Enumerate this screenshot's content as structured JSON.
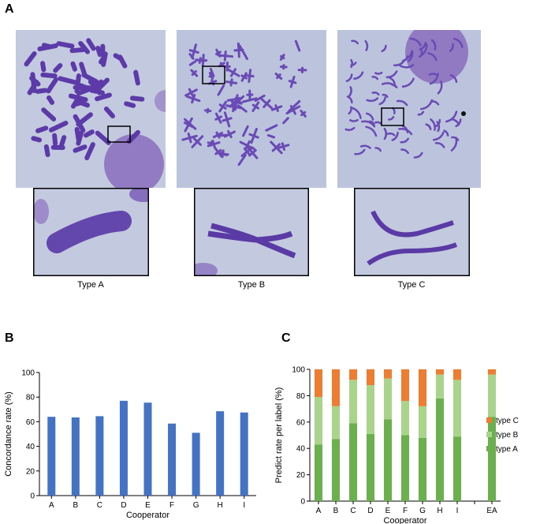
{
  "panel_a": {
    "letter": "A",
    "captions": [
      "Type A",
      "Type B",
      "Type C"
    ],
    "colors": {
      "slide": "#bcc4dd",
      "chromosome": "#5c3aa8",
      "nucleus": "#8d72bf",
      "frame": "#000000"
    }
  },
  "chart_data": [
    {
      "panel": "B",
      "type": "bar",
      "title": "",
      "xlabel": "Cooperator",
      "ylabel": "Concordance rate (%)",
      "ylim": [
        0,
        100
      ],
      "yticks": [
        0,
        20,
        40,
        60,
        80,
        100
      ],
      "categories": [
        "A",
        "B",
        "C",
        "D",
        "E",
        "F",
        "G",
        "H",
        "I"
      ],
      "values": [
        64,
        63.5,
        64.5,
        77,
        75.5,
        58.5,
        51,
        68.5,
        67.5
      ],
      "color": "#4472c4",
      "grid": false
    },
    {
      "panel": "C",
      "type": "bar",
      "stacked": true,
      "title": "",
      "xlabel": "Cooperator",
      "ylabel": "Predict rate per label (%)",
      "ylim": [
        0,
        100
      ],
      "yticks": [
        0,
        20,
        40,
        60,
        80,
        100
      ],
      "categories": [
        "A",
        "B",
        "C",
        "D",
        "E",
        "F",
        "G",
        "H",
        "I",
        "",
        "EA"
      ],
      "legend_position": "right",
      "grid": false,
      "series": [
        {
          "name": "type A",
          "color": "#6ab04c",
          "values": [
            43,
            47,
            59,
            51,
            62,
            50,
            48,
            78,
            49,
            null,
            64
          ]
        },
        {
          "name": "type B",
          "color": "#a8d58a",
          "values": [
            36,
            25,
            33,
            37,
            31,
            26,
            24,
            18,
            43,
            null,
            32
          ]
        },
        {
          "name": "type C",
          "color": "#ef7d31",
          "values": [
            21,
            28,
            8,
            12,
            7,
            24,
            28,
            4,
            8,
            null,
            4
          ]
        }
      ]
    }
  ]
}
